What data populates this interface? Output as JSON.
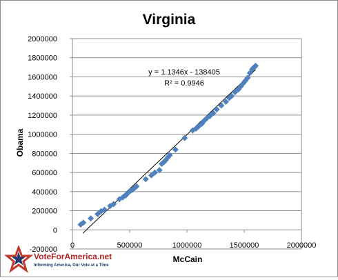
{
  "chart_data": {
    "type": "scatter",
    "title": "Virginia",
    "xlabel": "McCain",
    "ylabel": "Obama",
    "xlim": [
      0,
      2000000
    ],
    "ylim": [
      -200000,
      2000000
    ],
    "x_ticks": [
      0,
      500000,
      1000000,
      1500000,
      2000000
    ],
    "x_tick_labels": [
      "0",
      "500000",
      "1000000",
      "1500000",
      "2000000"
    ],
    "y_ticks": [
      -200000,
      0,
      200000,
      400000,
      600000,
      800000,
      1000000,
      1200000,
      1400000,
      1600000,
      1800000,
      2000000
    ],
    "y_tick_labels": [
      "-200000",
      "0",
      "200000",
      "400000",
      "600000",
      "800000",
      "1000000",
      "1200000",
      "1400000",
      "1600000",
      "1800000",
      "2000000"
    ],
    "grid": "horizontal",
    "legend": "none",
    "marker_color": "#4f81bd",
    "trendline": {
      "slope": 1.1346,
      "intercept": -138405,
      "x_range": [
        90000,
        1600000
      ],
      "equation": "y = 1.1346x - 138405",
      "r_squared": "R² = 0.9946"
    },
    "points": [
      [
        72000,
        55000
      ],
      [
        95000,
        75000
      ],
      [
        160000,
        120000
      ],
      [
        220000,
        165000
      ],
      [
        250000,
        195000
      ],
      [
        280000,
        210000
      ],
      [
        330000,
        250000
      ],
      [
        360000,
        270000
      ],
      [
        410000,
        320000
      ],
      [
        440000,
        340000
      ],
      [
        465000,
        360000
      ],
      [
        480000,
        380000
      ],
      [
        495000,
        400000
      ],
      [
        510000,
        410000
      ],
      [
        525000,
        420000
      ],
      [
        545000,
        440000
      ],
      [
        560000,
        455000
      ],
      [
        640000,
        530000
      ],
      [
        690000,
        570000
      ],
      [
        720000,
        600000
      ],
      [
        760000,
        625000
      ],
      [
        780000,
        690000
      ],
      [
        800000,
        710000
      ],
      [
        815000,
        730000
      ],
      [
        835000,
        760000
      ],
      [
        850000,
        780000
      ],
      [
        900000,
        840000
      ],
      [
        980000,
        960000
      ],
      [
        1050000,
        1040000
      ],
      [
        1080000,
        1060000
      ],
      [
        1100000,
        1080000
      ],
      [
        1130000,
        1110000
      ],
      [
        1150000,
        1140000
      ],
      [
        1175000,
        1170000
      ],
      [
        1200000,
        1190000
      ],
      [
        1230000,
        1220000
      ],
      [
        1260000,
        1260000
      ],
      [
        1300000,
        1300000
      ],
      [
        1340000,
        1340000
      ],
      [
        1370000,
        1380000
      ],
      [
        1390000,
        1400000
      ],
      [
        1420000,
        1440000
      ],
      [
        1450000,
        1470000
      ],
      [
        1470000,
        1500000
      ],
      [
        1490000,
        1530000
      ],
      [
        1510000,
        1560000
      ],
      [
        1530000,
        1590000
      ],
      [
        1550000,
        1640000
      ],
      [
        1570000,
        1680000
      ],
      [
        1585000,
        1700000
      ],
      [
        1600000,
        1715000
      ]
    ]
  },
  "logo": {
    "name": "VoteForAmerica.net",
    "tagline": "Informing America, Our Vote at a Time"
  }
}
